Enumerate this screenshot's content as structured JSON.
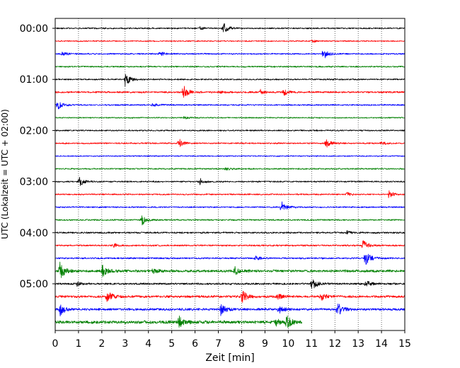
{
  "chart_data": {
    "type": "line",
    "title": "",
    "xlabel": "Zeit  [min]",
    "ylabel": "UTC (Lokalzeit = UTC + 02:00)",
    "xlim": [
      0,
      15
    ],
    "x_ticks": [
      "0",
      "1",
      "2",
      "3",
      "4",
      "5",
      "6",
      "7",
      "8",
      "9",
      "10",
      "11",
      "12",
      "13",
      "14",
      "15"
    ],
    "y_tick_labels": [
      "00:00",
      "01:00",
      "02:00",
      "03:00",
      "04:00",
      "05:00"
    ],
    "grid": "vertical dotted",
    "legend": "none",
    "trace_interval_min": 15,
    "color_cycle": [
      "#000000",
      "#ff0000",
      "#0000ff",
      "#008000"
    ],
    "traces": [
      {
        "start": "00:00",
        "end_min": 15,
        "color": "#000000",
        "noise": 0.12,
        "events": [
          [
            7.2,
            1.0
          ],
          [
            6.2,
            0.25
          ]
        ]
      },
      {
        "start": "00:15",
        "end_min": 15,
        "color": "#ff0000",
        "noise": 0.1,
        "events": [
          [
            11.0,
            0.25
          ]
        ]
      },
      {
        "start": "00:30",
        "end_min": 15,
        "color": "#0000ff",
        "noise": 0.12,
        "events": [
          [
            11.5,
            0.9
          ],
          [
            4.5,
            0.3
          ],
          [
            0.3,
            0.3
          ]
        ]
      },
      {
        "start": "00:45",
        "end_min": 15,
        "color": "#008000",
        "noise": 0.12,
        "events": []
      },
      {
        "start": "01:00",
        "end_min": 15,
        "color": "#000000",
        "noise": 0.12,
        "events": [
          [
            3.0,
            1.1
          ]
        ]
      },
      {
        "start": "01:15",
        "end_min": 15,
        "color": "#ff0000",
        "noise": 0.15,
        "events": [
          [
            5.5,
            1.1
          ],
          [
            9.8,
            0.45
          ],
          [
            8.8,
            0.35
          ],
          [
            7.0,
            0.3
          ]
        ]
      },
      {
        "start": "01:30",
        "end_min": 15,
        "color": "#0000ff",
        "noise": 0.12,
        "events": [
          [
            0.1,
            0.7
          ],
          [
            4.2,
            0.35
          ]
        ]
      },
      {
        "start": "01:45",
        "end_min": 15,
        "color": "#008000",
        "noise": 0.1,
        "events": [
          [
            5.5,
            0.25
          ]
        ]
      },
      {
        "start": "02:00",
        "end_min": 15,
        "color": "#000000",
        "noise": 0.12,
        "events": []
      },
      {
        "start": "02:15",
        "end_min": 15,
        "color": "#ff0000",
        "noise": 0.12,
        "events": [
          [
            5.3,
            0.7
          ],
          [
            11.6,
            0.8
          ],
          [
            14.0,
            0.25
          ]
        ]
      },
      {
        "start": "02:30",
        "end_min": 15,
        "color": "#0000ff",
        "noise": 0.1,
        "events": []
      },
      {
        "start": "02:45",
        "end_min": 15,
        "color": "#008000",
        "noise": 0.12,
        "events": [
          [
            7.3,
            0.25
          ]
        ]
      },
      {
        "start": "03:00",
        "end_min": 15,
        "color": "#000000",
        "noise": 0.12,
        "events": [
          [
            1.0,
            0.9
          ],
          [
            6.2,
            0.5
          ]
        ]
      },
      {
        "start": "03:15",
        "end_min": 15,
        "color": "#ff0000",
        "noise": 0.12,
        "events": [
          [
            14.3,
            0.6
          ],
          [
            12.5,
            0.3
          ]
        ]
      },
      {
        "start": "03:30",
        "end_min": 15,
        "color": "#0000ff",
        "noise": 0.12,
        "events": [
          [
            9.7,
            1.0
          ]
        ]
      },
      {
        "start": "03:45",
        "end_min": 15,
        "color": "#008000",
        "noise": 0.12,
        "events": [
          [
            3.7,
            0.9
          ]
        ]
      },
      {
        "start": "04:00",
        "end_min": 15,
        "color": "#000000",
        "noise": 0.14,
        "events": [
          [
            12.5,
            0.3
          ]
        ]
      },
      {
        "start": "04:15",
        "end_min": 15,
        "color": "#ff0000",
        "noise": 0.14,
        "events": [
          [
            13.2,
            0.8
          ],
          [
            2.5,
            0.3
          ]
        ]
      },
      {
        "start": "04:30",
        "end_min": 15,
        "color": "#0000ff",
        "noise": 0.14,
        "events": [
          [
            13.3,
            1.3
          ],
          [
            8.6,
            0.3
          ]
        ]
      },
      {
        "start": "04:45",
        "end_min": 15,
        "color": "#008000",
        "noise": 0.22,
        "events": [
          [
            0.2,
            1.4
          ],
          [
            2.0,
            1.2
          ],
          [
            7.7,
            0.6
          ],
          [
            4.2,
            0.4
          ]
        ]
      },
      {
        "start": "05:00",
        "end_min": 15,
        "color": "#000000",
        "noise": 0.16,
        "events": [
          [
            11.0,
            1.0
          ],
          [
            13.3,
            0.6
          ],
          [
            0.9,
            0.4
          ]
        ]
      },
      {
        "start": "05:15",
        "end_min": 15,
        "color": "#ff0000",
        "noise": 0.2,
        "events": [
          [
            2.2,
            1.0
          ],
          [
            8.0,
            1.2
          ],
          [
            11.4,
            0.7
          ],
          [
            9.5,
            0.5
          ]
        ]
      },
      {
        "start": "05:30",
        "end_min": 15,
        "color": "#0000ff",
        "noise": 0.2,
        "events": [
          [
            0.2,
            1.1
          ],
          [
            7.1,
            1.0
          ],
          [
            12.1,
            1.3
          ],
          [
            9.6,
            0.6
          ]
        ]
      },
      {
        "start": "05:45",
        "end_min": 10.6,
        "color": "#008000",
        "noise": 0.26,
        "events": [
          [
            5.3,
            1.0
          ],
          [
            9.9,
            1.2
          ],
          [
            9.4,
            0.8
          ]
        ]
      }
    ]
  }
}
